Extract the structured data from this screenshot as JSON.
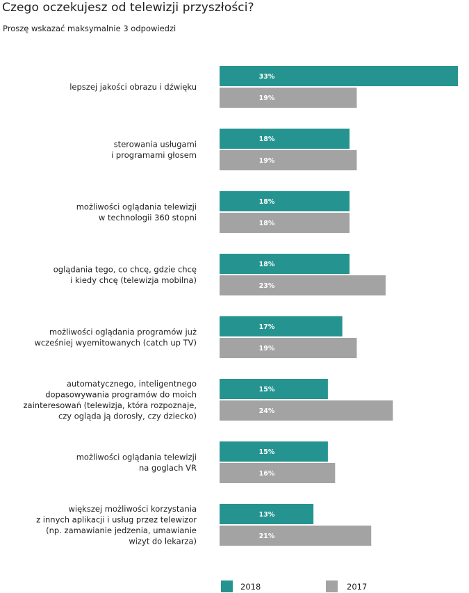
{
  "title": "Czego oczekujesz od telewizji przyszłości?",
  "subtitle": "Proszę wskazać maksymalnie 3 odpowiedzi",
  "colors": {
    "2018": "#259490",
    "2017": "#a3a3a3"
  },
  "chart_data": {
    "type": "bar",
    "orientation": "horizontal",
    "xlim": [
      0,
      33
    ],
    "grid": false,
    "legend": "bottom",
    "categories": [
      [
        "lepszej jakości obrazu i dźwięku"
      ],
      [
        "sterowania usługami",
        "i programami głosem"
      ],
      [
        "możliwości oglądania telewizji",
        "w technologii 360 stopni"
      ],
      [
        "oglądania tego, co chcę, gdzie chcę",
        "i kiedy chcę (telewizja mobilna)"
      ],
      [
        "możliwości oglądania programów już",
        "wcześniej wyemitowanych (catch up TV)"
      ],
      [
        "automatycznego, inteligentnego",
        "dopasowywania programów do moich",
        "zainteresowań (telewizja, która rozpoznaje,",
        "czy ogląda ją dorosły, czy dziecko)"
      ],
      [
        "możliwości oglądania telewizji",
        "na goglach VR"
      ],
      [
        "większej możliwości korzystania",
        "z innych aplikacji i usług przez telewizor",
        "(np. zamawianie jedzenia, umawianie",
        "wizyt do lekarza)"
      ]
    ],
    "series": [
      {
        "name": "2018",
        "values": [
          33,
          18,
          18,
          18,
          17,
          15,
          15,
          13
        ],
        "labels": [
          "33%",
          "18%",
          "18%",
          "18%",
          "17%",
          "15%",
          "15%",
          "13%"
        ]
      },
      {
        "name": "2017",
        "values": [
          19,
          19,
          18,
          23,
          19,
          24,
          16,
          21
        ],
        "labels": [
          "19%",
          "19%",
          "18%",
          "23%",
          "19%",
          "24%",
          "16%",
          "21%"
        ]
      }
    ]
  }
}
